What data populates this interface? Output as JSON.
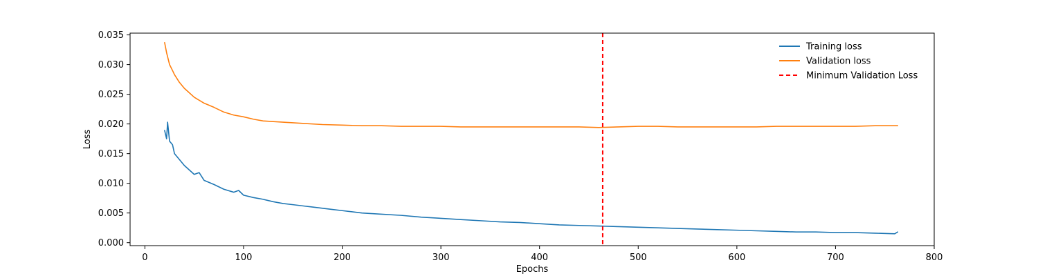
{
  "chart_data": {
    "type": "line",
    "title": "",
    "xlabel": "Epochs",
    "ylabel": "Loss",
    "xlim": [
      -15,
      800
    ],
    "ylim": [
      -0.0005,
      0.0353
    ],
    "xticks": [
      0,
      100,
      200,
      300,
      400,
      500,
      600,
      700,
      800
    ],
    "yticks": [
      0.0,
      0.005,
      0.01,
      0.015,
      0.02,
      0.025,
      0.03,
      0.035
    ],
    "ytick_labels": [
      "0.000",
      "0.005",
      "0.010",
      "0.015",
      "0.020",
      "0.025",
      "0.030",
      "0.035"
    ],
    "xtick_labels": [
      "0",
      "100",
      "200",
      "300",
      "400",
      "500",
      "600",
      "700",
      "800"
    ],
    "grid": false,
    "legend": {
      "position": "top-right",
      "frame": false
    },
    "series": [
      {
        "name": "Training loss",
        "color": "#1f77b4",
        "style": "solid",
        "x": [
          20,
          22,
          23,
          25,
          28,
          30,
          35,
          40,
          50,
          55,
          60,
          70,
          80,
          90,
          95,
          100,
          110,
          120,
          130,
          140,
          150,
          160,
          170,
          180,
          190,
          200,
          210,
          220,
          240,
          260,
          280,
          300,
          320,
          340,
          360,
          380,
          400,
          420,
          440,
          460,
          480,
          500,
          520,
          540,
          560,
          580,
          600,
          620,
          640,
          660,
          680,
          700,
          720,
          740,
          760,
          763
        ],
        "y": [
          0.0189,
          0.0175,
          0.0203,
          0.0171,
          0.0165,
          0.015,
          0.014,
          0.013,
          0.0115,
          0.0118,
          0.0105,
          0.0098,
          0.009,
          0.0085,
          0.0088,
          0.008,
          0.0076,
          0.0073,
          0.0069,
          0.0066,
          0.0064,
          0.0062,
          0.006,
          0.0058,
          0.0056,
          0.0054,
          0.0052,
          0.005,
          0.0048,
          0.0046,
          0.0043,
          0.0041,
          0.0039,
          0.0037,
          0.0035,
          0.0034,
          0.0032,
          0.003,
          0.0029,
          0.0028,
          0.0027,
          0.0026,
          0.0025,
          0.0024,
          0.0023,
          0.0022,
          0.0021,
          0.002,
          0.0019,
          0.0018,
          0.0018,
          0.0017,
          0.0017,
          0.0016,
          0.0015,
          0.0018
        ]
      },
      {
        "name": "Validation loss",
        "color": "#ff7f0e",
        "style": "solid",
        "x": [
          20,
          22,
          25,
          28,
          30,
          35,
          40,
          50,
          60,
          70,
          80,
          90,
          100,
          110,
          120,
          140,
          160,
          180,
          200,
          220,
          240,
          260,
          280,
          300,
          320,
          340,
          360,
          380,
          400,
          420,
          440,
          460,
          480,
          500,
          520,
          540,
          560,
          580,
          600,
          620,
          640,
          660,
          680,
          700,
          720,
          740,
          760,
          763
        ],
        "y": [
          0.0337,
          0.032,
          0.03,
          0.029,
          0.0283,
          0.027,
          0.026,
          0.0245,
          0.0235,
          0.0228,
          0.022,
          0.0215,
          0.0212,
          0.0208,
          0.0205,
          0.0203,
          0.0201,
          0.0199,
          0.0198,
          0.0197,
          0.0197,
          0.0196,
          0.0196,
          0.0196,
          0.0195,
          0.0195,
          0.0195,
          0.0195,
          0.0195,
          0.0195,
          0.0195,
          0.0194,
          0.0195,
          0.0196,
          0.0196,
          0.0195,
          0.0195,
          0.0195,
          0.0195,
          0.0195,
          0.0196,
          0.0196,
          0.0196,
          0.0196,
          0.0196,
          0.0197,
          0.0197,
          0.0197
        ]
      },
      {
        "name": "Minimum Validation Loss",
        "color": "#ff0000",
        "style": "dashed",
        "type": "vline",
        "x": 464
      }
    ]
  }
}
